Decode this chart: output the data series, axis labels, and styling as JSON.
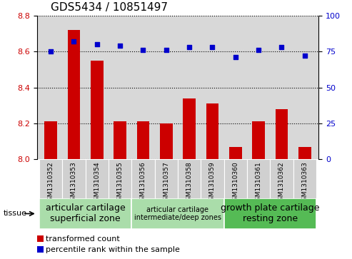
{
  "title": "GDS5434 / 10851497",
  "samples": [
    "GSM1310352",
    "GSM1310353",
    "GSM1310354",
    "GSM1310355",
    "GSM1310356",
    "GSM1310357",
    "GSM1310358",
    "GSM1310359",
    "GSM1310360",
    "GSM1310361",
    "GSM1310362",
    "GSM1310363"
  ],
  "bar_values": [
    8.21,
    8.72,
    8.55,
    8.21,
    8.21,
    8.2,
    8.34,
    8.31,
    8.07,
    8.21,
    8.28,
    8.07
  ],
  "scatter_values": [
    75,
    82,
    80,
    79,
    76,
    76,
    78,
    78,
    71,
    76,
    78,
    72
  ],
  "ylim_left": [
    8.0,
    8.8
  ],
  "ylim_right": [
    0,
    100
  ],
  "yticks_left": [
    8.0,
    8.2,
    8.4,
    8.6,
    8.8
  ],
  "yticks_right": [
    0,
    25,
    50,
    75,
    100
  ],
  "bar_color": "#cc0000",
  "scatter_color": "#0000cc",
  "bar_width": 0.55,
  "tissue_groups": [
    {
      "label": "articular cartilage\nsuperficial zone",
      "start": 0,
      "end": 3,
      "color": "#aaddaa",
      "fontsize": 9
    },
    {
      "label": "articular cartilage\nintermediate/deep zones",
      "start": 4,
      "end": 7,
      "color": "#aaddaa",
      "fontsize": 7
    },
    {
      "label": "growth plate cartilage\nresting zone",
      "start": 8,
      "end": 11,
      "color": "#55bb55",
      "fontsize": 9
    }
  ],
  "tissue_label": "tissue",
  "legend_bar_label": "transformed count",
  "legend_scatter_label": "percentile rank within the sample",
  "title_fontsize": 11,
  "tick_fontsize": 8,
  "label_fontsize": 8,
  "dotted_line_color": "#000000",
  "background_color": "#ffffff",
  "plot_bg_color": "#d8d8d8",
  "xlim": [
    -0.6,
    11.6
  ]
}
